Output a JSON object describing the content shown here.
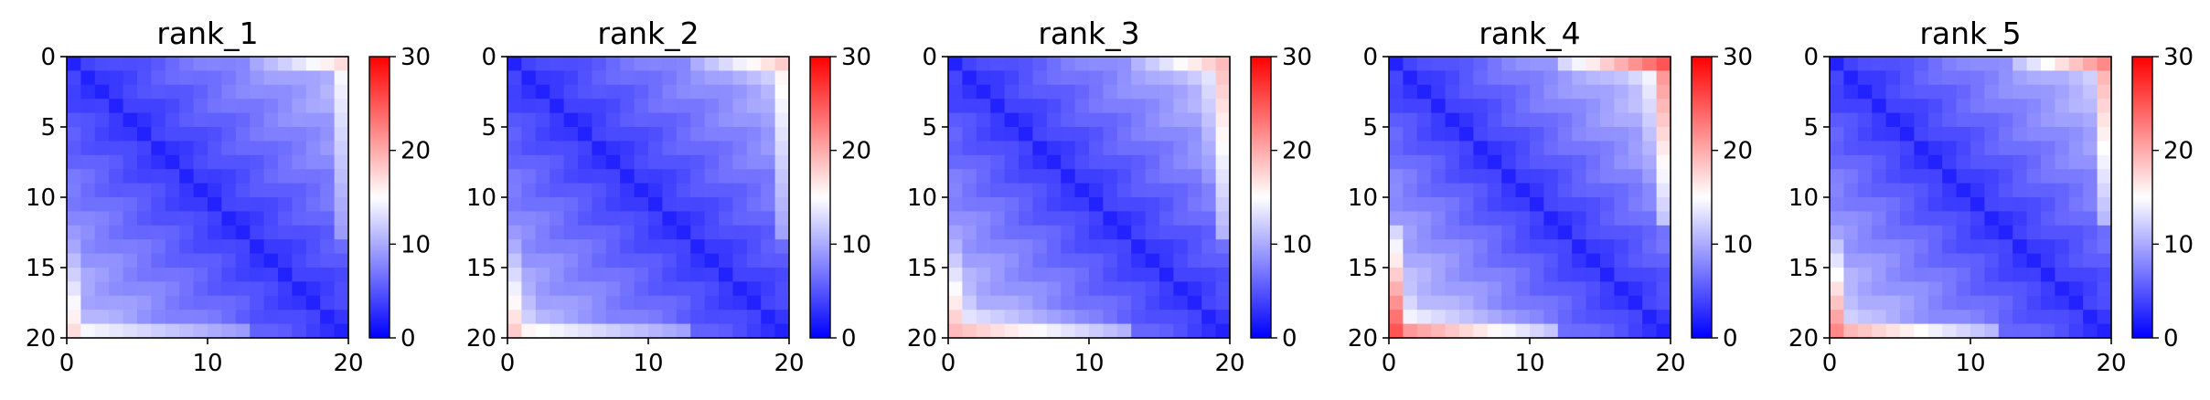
{
  "chart_data": [
    {
      "type": "heatmap",
      "title": "rank_1",
      "x_ticks": [
        "0",
        "10",
        "20"
      ],
      "y_ticks": [
        "0",
        "5",
        "10",
        "15",
        "20"
      ],
      "xlim": [
        0,
        20
      ],
      "ylim": [
        20,
        0
      ],
      "colorbar": {
        "ticks": [
          "0",
          "10",
          "20",
          "30"
        ],
        "vmin": 0,
        "vmax": 30,
        "colormap": "bwr"
      },
      "diagonal_value": 2,
      "near_diagonal_slope": 0.45,
      "base": 3,
      "hot_rows": [
        {
          "row": 0,
          "from_col": 13,
          "to_col": 19,
          "peak": 17
        },
        {
          "row": 19,
          "from_col": 0,
          "to_col": 12,
          "peak": 15
        },
        {
          "row": 18,
          "from_col": 0,
          "to_col": 6,
          "peak": 10
        }
      ]
    },
    {
      "type": "heatmap",
      "title": "rank_2",
      "x_ticks": [
        "0",
        "10",
        "20"
      ],
      "y_ticks": [
        "0",
        "5",
        "10",
        "15",
        "20"
      ],
      "xlim": [
        0,
        20
      ],
      "ylim": [
        20,
        0
      ],
      "colorbar": {
        "ticks": [
          "0",
          "10",
          "20",
          "30"
        ],
        "vmin": 0,
        "vmax": 30,
        "colormap": "bwr"
      },
      "diagonal_value": 2,
      "near_diagonal_slope": 0.45,
      "base": 3,
      "hot_rows": [
        {
          "row": 0,
          "from_col": 13,
          "to_col": 19,
          "peak": 18
        },
        {
          "row": 1,
          "from_col": 14,
          "to_col": 19,
          "peak": 13
        },
        {
          "row": 19,
          "from_col": 0,
          "to_col": 12,
          "peak": 16
        },
        {
          "row": 18,
          "from_col": 0,
          "to_col": 6,
          "peak": 12
        }
      ]
    },
    {
      "type": "heatmap",
      "title": "rank_3",
      "x_ticks": [
        "0",
        "10",
        "20"
      ],
      "y_ticks": [
        "0",
        "5",
        "10",
        "15",
        "20"
      ],
      "xlim": [
        0,
        20
      ],
      "ylim": [
        20,
        0
      ],
      "colorbar": {
        "ticks": [
          "0",
          "10",
          "20",
          "30"
        ],
        "vmin": 0,
        "vmax": 30,
        "colormap": "bwr"
      },
      "diagonal_value": 2,
      "near_diagonal_slope": 0.5,
      "base": 3,
      "hot_rows": [
        {
          "row": 0,
          "from_col": 13,
          "to_col": 19,
          "peak": 19
        },
        {
          "row": 1,
          "from_col": 14,
          "to_col": 19,
          "peak": 14
        },
        {
          "row": 2,
          "from_col": 16,
          "to_col": 19,
          "peak": 11
        },
        {
          "row": 19,
          "from_col": 0,
          "to_col": 12,
          "peak": 19
        },
        {
          "row": 18,
          "from_col": 0,
          "to_col": 8,
          "peak": 14
        }
      ]
    },
    {
      "type": "heatmap",
      "title": "rank_4",
      "x_ticks": [
        "0",
        "10",
        "20"
      ],
      "y_ticks": [
        "0",
        "5",
        "10",
        "15",
        "20"
      ],
      "xlim": [
        0,
        20
      ],
      "ylim": [
        20,
        0
      ],
      "colorbar": {
        "ticks": [
          "0",
          "10",
          "20",
          "30"
        ],
        "vmin": 0,
        "vmax": 30,
        "colormap": "bwr"
      },
      "diagonal_value": 2,
      "near_diagonal_slope": 0.55,
      "base": 3,
      "hot_rows": [
        {
          "row": 0,
          "from_col": 12,
          "to_col": 19,
          "peak": 25
        },
        {
          "row": 1,
          "from_col": 14,
          "to_col": 19,
          "peak": 15
        },
        {
          "row": 2,
          "from_col": 16,
          "to_col": 19,
          "peak": 12
        },
        {
          "row": 19,
          "from_col": 0,
          "to_col": 11,
          "peak": 22
        },
        {
          "row": 18,
          "from_col": 0,
          "to_col": 8,
          "peak": 15
        }
      ]
    },
    {
      "type": "heatmap",
      "title": "rank_5",
      "x_ticks": [
        "0",
        "10",
        "20"
      ],
      "y_ticks": [
        "0",
        "5",
        "10",
        "15",
        "20"
      ],
      "xlim": [
        0,
        20
      ],
      "ylim": [
        20,
        0
      ],
      "colorbar": {
        "ticks": [
          "0",
          "10",
          "20",
          "30"
        ],
        "vmin": 0,
        "vmax": 30,
        "colormap": "bwr"
      },
      "diagonal_value": 2,
      "near_diagonal_slope": 0.5,
      "base": 3,
      "hot_rows": [
        {
          "row": 0,
          "from_col": 13,
          "to_col": 19,
          "peak": 22
        },
        {
          "row": 1,
          "from_col": 14,
          "to_col": 19,
          "peak": 13
        },
        {
          "row": 19,
          "from_col": 0,
          "to_col": 11,
          "peak": 20
        },
        {
          "row": 18,
          "from_col": 0,
          "to_col": 6,
          "peak": 13
        }
      ]
    }
  ]
}
